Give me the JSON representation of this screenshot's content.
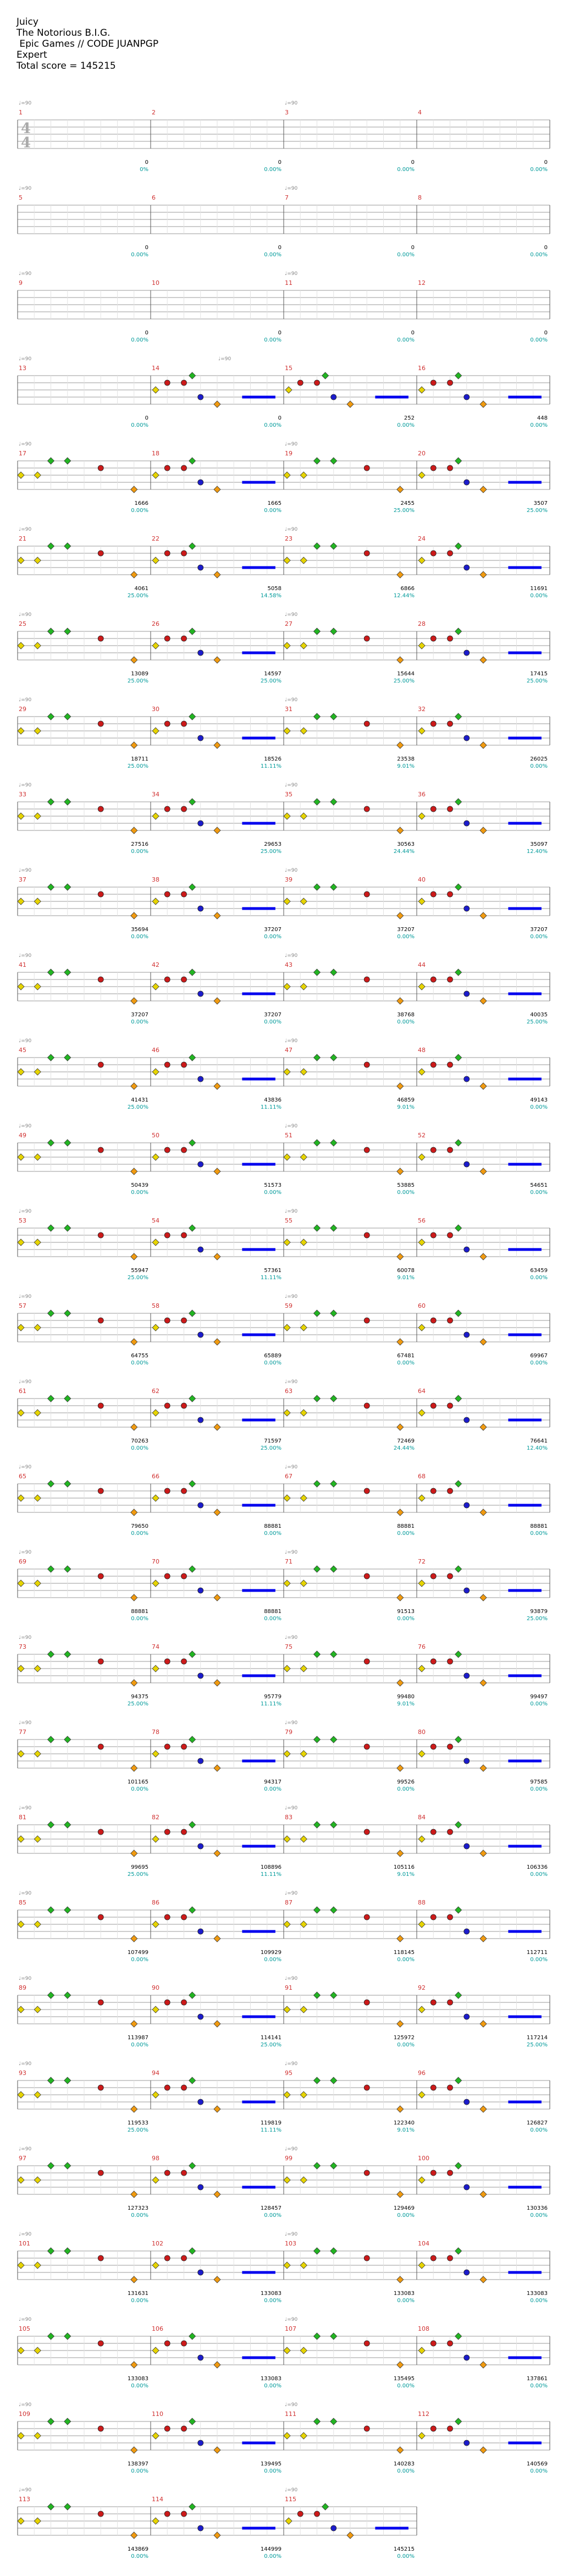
{
  "song": {
    "title": "Juicy",
    "artist": "The Notorious B.I.G.",
    "charter": " Epic Games // CODE JUANPGP",
    "difficulty": "Expert",
    "total_score_label": "Total score = ",
    "total_score": "145215"
  },
  "time_signature": {
    "top": "4",
    "bottom": "4"
  },
  "tempo_marks": [
    {
      "measure": 1,
      "beat": 0,
      "label": "♩=90"
    },
    {
      "measure": 3,
      "beat": 0,
      "label": "♩=90"
    },
    {
      "measure": 5,
      "beat": 0,
      "label": "♩=90"
    },
    {
      "measure": 7,
      "beat": 0,
      "label": "♩=90"
    },
    {
      "measure": 9,
      "beat": 0,
      "label": "♩=90"
    },
    {
      "measure": 11,
      "beat": 0,
      "label": "♩=90"
    },
    {
      "measure": 13,
      "beat": 0,
      "label": "♩=90"
    },
    {
      "measure": 14,
      "beat": 2,
      "label": "♩=90"
    },
    {
      "measure": 17,
      "beat": 0,
      "label": "♩=90"
    },
    {
      "measure": 19,
      "beat": 0,
      "label": "♩=90"
    },
    {
      "measure": 21,
      "beat": 0,
      "label": "♩=90"
    },
    {
      "measure": 23,
      "beat": 0,
      "label": "♩=90"
    },
    {
      "measure": 25,
      "beat": 0,
      "label": "♩=90"
    },
    {
      "measure": 27,
      "beat": 0,
      "label": "♩=90"
    },
    {
      "measure": 29,
      "beat": 0,
      "label": "♩=90"
    },
    {
      "measure": 31,
      "beat": 0,
      "label": "♩=90"
    },
    {
      "measure": 33,
      "beat": 0,
      "label": "♩=90"
    },
    {
      "measure": 35,
      "beat": 0,
      "label": "♩=90"
    },
    {
      "measure": 37,
      "beat": 0,
      "label": "♩=90"
    },
    {
      "measure": 39,
      "beat": 0,
      "label": "♩=90"
    },
    {
      "measure": 41,
      "beat": 0,
      "label": "♩=90"
    },
    {
      "measure": 43,
      "beat": 0,
      "label": "♩=90"
    },
    {
      "measure": 45,
      "beat": 0,
      "label": "♩=90"
    },
    {
      "measure": 47,
      "beat": 0,
      "label": "♩=90"
    },
    {
      "measure": 49,
      "beat": 0,
      "label": "♩=90"
    },
    {
      "measure": 51,
      "beat": 0,
      "label": "♩=90"
    },
    {
      "measure": 53,
      "beat": 0,
      "label": "♩=90"
    },
    {
      "measure": 55,
      "beat": 0,
      "label": "♩=90"
    },
    {
      "measure": 57,
      "beat": 0,
      "label": "♩=90"
    },
    {
      "measure": 59,
      "beat": 0,
      "label": "♩=90"
    },
    {
      "measure": 61,
      "beat": 0,
      "label": "♩=90"
    },
    {
      "measure": 63,
      "beat": 0,
      "label": "♩=90"
    },
    {
      "measure": 65,
      "beat": 0,
      "label": "♩=90"
    },
    {
      "measure": 67,
      "beat": 0,
      "label": "♩=90"
    },
    {
      "measure": 69,
      "beat": 0,
      "label": "♩=90"
    },
    {
      "measure": 71,
      "beat": 0,
      "label": "♩=90"
    },
    {
      "measure": 73,
      "beat": 0,
      "label": "♩=90"
    },
    {
      "measure": 75,
      "beat": 0,
      "label": "♩=90"
    },
    {
      "measure": 77,
      "beat": 0,
      "label": "♩=90"
    },
    {
      "measure": 79,
      "beat": 0,
      "label": "♩=90"
    },
    {
      "measure": 81,
      "beat": 0,
      "label": "♩=90"
    },
    {
      "measure": 83,
      "beat": 0,
      "label": "♩=90"
    },
    {
      "measure": 85,
      "beat": 0,
      "label": "♩=90"
    },
    {
      "measure": 87,
      "beat": 0,
      "label": "♩=90"
    },
    {
      "measure": 89,
      "beat": 0,
      "label": "♩=90"
    },
    {
      "measure": 91,
      "beat": 0,
      "label": "♩=90"
    },
    {
      "measure": 93,
      "beat": 0,
      "label": "♩=90"
    },
    {
      "measure": 95,
      "beat": 0,
      "label": "♩=90"
    },
    {
      "measure": 97,
      "beat": 0,
      "label": "♩=90"
    },
    {
      "measure": 99,
      "beat": 0,
      "label": "♩=90"
    },
    {
      "measure": 101,
      "beat": 0,
      "label": "♩=90"
    },
    {
      "measure": 103,
      "beat": 0,
      "label": "♩=90"
    },
    {
      "measure": 105,
      "beat": 0,
      "label": "♩=90"
    },
    {
      "measure": 107,
      "beat": 0,
      "label": "♩=90"
    },
    {
      "measure": 109,
      "beat": 0,
      "label": "♩=90"
    },
    {
      "measure": 111,
      "beat": 0,
      "label": "♩=90"
    },
    {
      "measure": 113,
      "beat": 0,
      "label": "♩=90"
    },
    {
      "measure": 115,
      "beat": 0,
      "label": "♩=90"
    }
  ],
  "measure_scores": [
    [
      "0",
      "0%"
    ],
    [
      "0",
      "0.00%"
    ],
    [
      "0",
      "0.00%"
    ],
    [
      "0",
      "0.00%"
    ],
    [
      "0",
      "0.00%"
    ],
    [
      "0",
      "0.00%"
    ],
    [
      "0",
      "0.00%"
    ],
    [
      "0",
      "0.00%"
    ],
    [
      "0",
      "0.00%"
    ],
    [
      "0",
      "0.00%"
    ],
    [
      "0",
      "0.00%"
    ],
    [
      "0",
      "0.00%"
    ],
    [
      "0",
      "0.00%"
    ],
    [
      "0",
      "0.00%"
    ],
    [
      "252",
      "0.00%"
    ],
    [
      "448",
      "0.00%"
    ],
    [
      "1666",
      "0.00%"
    ],
    [
      "1665",
      "0.00%"
    ],
    [
      "2455",
      "25.00%"
    ],
    [
      "3507",
      "25.00%"
    ],
    [
      "4061",
      "25.00%"
    ],
    [
      "5058",
      "14.58%"
    ],
    [
      "6866",
      "12.44%"
    ],
    [
      "11691",
      "0.00%"
    ],
    [
      "13089",
      "25.00%"
    ],
    [
      "14597",
      "25.00%"
    ],
    [
      "15644",
      "25.00%"
    ],
    [
      "17415",
      "25.00%"
    ],
    [
      "18711",
      "25.00%"
    ],
    [
      "18526",
      "11.11%"
    ],
    [
      "23538",
      "9.01%"
    ],
    [
      "26025",
      "0.00%"
    ],
    [
      "27516",
      "0.00%"
    ],
    [
      "29653",
      "25.00%"
    ],
    [
      "30563",
      "24.44%"
    ],
    [
      "35097",
      "12.40%"
    ],
    [
      "35694",
      "0.00%"
    ],
    [
      "37207",
      "0.00%"
    ],
    [
      "37207",
      "0.00%"
    ],
    [
      "37207",
      "0.00%"
    ],
    [
      "37207",
      "0.00%"
    ],
    [
      "37207",
      "0.00%"
    ],
    [
      "38768",
      "0.00%"
    ],
    [
      "40035",
      "25.00%"
    ],
    [
      "41431",
      "25.00%"
    ],
    [
      "43836",
      "11.11%"
    ],
    [
      "46859",
      "9.01%"
    ],
    [
      "49143",
      "0.00%"
    ],
    [
      "50439",
      "0.00%"
    ],
    [
      "51573",
      "0.00%"
    ],
    [
      "53885",
      "0.00%"
    ],
    [
      "54651",
      "0.00%"
    ],
    [
      "55947",
      "25.00%"
    ],
    [
      "57361",
      "11.11%"
    ],
    [
      "60078",
      "9.01%"
    ],
    [
      "63459",
      "0.00%"
    ],
    [
      "64755",
      "0.00%"
    ],
    [
      "65889",
      "0.00%"
    ],
    [
      "67481",
      "0.00%"
    ],
    [
      "69967",
      "0.00%"
    ],
    [
      "70263",
      "0.00%"
    ],
    [
      "71597",
      "25.00%"
    ],
    [
      "72469",
      "24.44%"
    ],
    [
      "76641",
      "12.40%"
    ],
    [
      "79650",
      "0.00%"
    ],
    [
      "88881",
      "0.00%"
    ],
    [
      "88881",
      "0.00%"
    ],
    [
      "88881",
      "0.00%"
    ],
    [
      "88881",
      "0.00%"
    ],
    [
      "88881",
      "0.00%"
    ],
    [
      "91513",
      "0.00%"
    ],
    [
      "93879",
      "25.00%"
    ],
    [
      "94375",
      "25.00%"
    ],
    [
      "95779",
      "11.11%"
    ],
    [
      "99480",
      "9.01%"
    ],
    [
      "99497",
      "0.00%"
    ],
    [
      "101165",
      "0.00%"
    ],
    [
      "94317",
      "0.00%"
    ],
    [
      "99526",
      "0.00%"
    ],
    [
      "97585",
      "0.00%"
    ],
    [
      "99695",
      "25.00%"
    ],
    [
      "108896",
      "11.11%"
    ],
    [
      "105116",
      "9.01%"
    ],
    [
      "106336",
      "0.00%"
    ],
    [
      "107499",
      "0.00%"
    ],
    [
      "109929",
      "0.00%"
    ],
    [
      "118145",
      "0.00%"
    ],
    [
      "112711",
      "0.00%"
    ],
    [
      "113987",
      "0.00%"
    ],
    [
      "114141",
      "25.00%"
    ],
    [
      "125972",
      "0.00%"
    ],
    [
      "117214",
      "25.00%"
    ],
    [
      "119533",
      "25.00%"
    ],
    [
      "119819",
      "11.11%"
    ],
    [
      "122340",
      "9.01%"
    ],
    [
      "126827",
      "0.00%"
    ],
    [
      "127323",
      "0.00%"
    ],
    [
      "128457",
      "0.00%"
    ],
    [
      "129469",
      "0.00%"
    ],
    [
      "130336",
      "0.00%"
    ],
    [
      "131631",
      "0.00%"
    ],
    [
      "133083",
      "0.00%"
    ],
    [
      "133083",
      "0.00%"
    ],
    [
      "133083",
      "0.00%"
    ],
    [
      "133083",
      "0.00%"
    ],
    [
      "133083",
      "0.00%"
    ],
    [
      "135495",
      "0.00%"
    ],
    [
      "137861",
      "0.00%"
    ],
    [
      "138397",
      "0.00%"
    ],
    [
      "139495",
      "0.00%"
    ],
    [
      "140283",
      "0.00%"
    ],
    [
      "140569",
      "0.00%"
    ],
    [
      "143869",
      "0.00%"
    ],
    [
      "144999",
      "0.00%"
    ],
    [
      "145215",
      "0.00%"
    ]
  ],
  "colors": {
    "measure_number": "#d03030",
    "score_text": "#000000",
    "percent_text": "#009a9a",
    "tempo_text": "#888888",
    "staff_line": "#9a9a9a",
    "overdrive_green": "#8ef08e",
    "activation_blue": "#8a8aee",
    "note_green": "#22b522",
    "note_red": "#cc1a1a",
    "note_yellow": "#e6d400",
    "note_blue": "#1c1ccc",
    "note_orange": "#f09a10",
    "sustain_blue": "#0000ee"
  },
  "legend_icons": [
    "green-note-icon",
    "red-note-icon",
    "yellow-note-icon",
    "blue-note-icon",
    "orange-note-icon",
    "star-note-icon",
    "sustain-tail-icon"
  ]
}
